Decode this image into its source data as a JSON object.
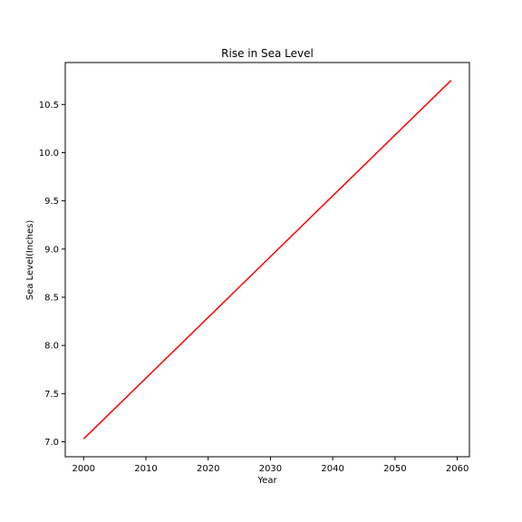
{
  "chart_data": {
    "type": "line",
    "title": "Rise in Sea Level",
    "xlabel": "Year",
    "ylabel": "Sea Level(Inches)",
    "xlim": [
      1997.05,
      2061.95
    ],
    "ylim": [
      6.845,
      10.935
    ],
    "x_ticks": [
      2000,
      2010,
      2020,
      2030,
      2040,
      2050,
      2060
    ],
    "y_ticks": [
      7.0,
      7.5,
      8.0,
      8.5,
      9.0,
      9.5,
      10.0,
      10.5
    ],
    "grid": false,
    "series": [
      {
        "color": "#ff0000",
        "x": [
          2000,
          2059
        ],
        "y": [
          7.03,
          10.75
        ]
      }
    ]
  }
}
